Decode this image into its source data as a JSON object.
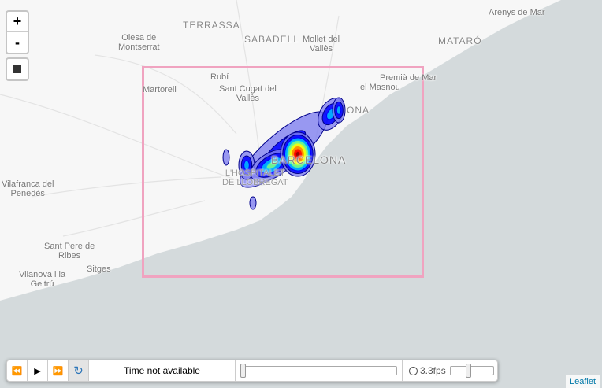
{
  "map": {
    "labels": {
      "terrassa": "TERRASSA",
      "sabadell": "SABADELL",
      "mollet": "Mollet del\nVallès",
      "mataro": "MATARÓ",
      "arenys": "Arenys de Mar",
      "olesa": "Olesa de\nMontserrat",
      "rubi": "Rubí",
      "santcugat": "Sant Cugat del\nVallès",
      "martorell": "Martorell",
      "premia": "Premià de Mar",
      "masnou": "el Masnou",
      "badalona": "ONA",
      "barcelona": "BARCELONA",
      "hospitalet": "L'HOSPITALET\nDE LLOBREGAT",
      "vilafranca": "Vilafranca del\nPenedès",
      "santpere": "Sant Pere de\nRibes",
      "sitges": "Sitges",
      "vilanova": "Vilanova i la\nGeltrú"
    },
    "bounds_rect_color": "#f0a3c0",
    "heatmap_colors": [
      "#00008b",
      "#0000ff",
      "#00bfff",
      "#7fff7f",
      "#ffff00",
      "#ff7f00",
      "#ff0000",
      "#8b0000"
    ]
  },
  "zoom": {
    "in": "+",
    "out": "-"
  },
  "draw": {
    "rectangle_icon": "square-icon"
  },
  "timedimension": {
    "backward": "⏪",
    "play": "▶",
    "forward": "⏩",
    "loop": "↻",
    "time": "Time not available",
    "speed": "3.3fps",
    "time_slider": 0,
    "speed_slider": 0.4
  },
  "attribution": "Leaflet"
}
